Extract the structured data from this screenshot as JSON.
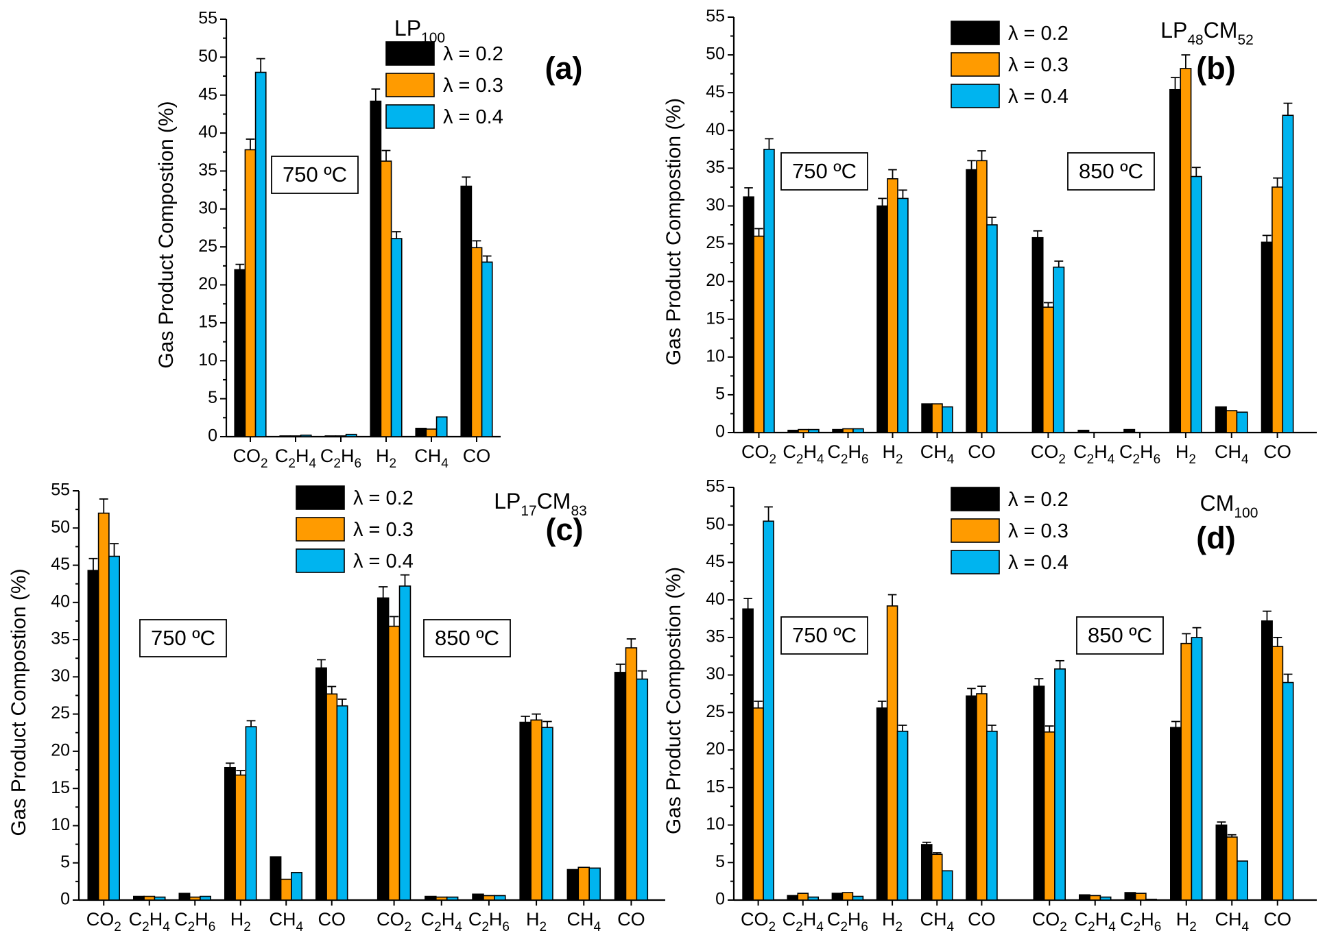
{
  "chart_data": [
    {
      "type": "bar",
      "panel": "(a)",
      "title": {
        "base": "LP",
        "sub": "100"
      },
      "ylabel": "Gas Product Compostion (%)",
      "ylim": [
        0,
        55
      ],
      "yticks": [
        0,
        5,
        10,
        15,
        20,
        25,
        30,
        35,
        40,
        45,
        50,
        55
      ],
      "legend_location": "top-right",
      "legend": [
        "λ = 0.2",
        "λ = 0.3",
        "λ = 0.4"
      ],
      "colors": [
        "#000000",
        "#ff9b00",
        "#00b4ef"
      ],
      "groups": [
        {
          "temperature": "750 ºC",
          "categories": [
            {
              "base": "CO",
              "sub": "2",
              "suffix": ""
            },
            {
              "base": "C",
              "sub": "2",
              "suffix": "H4"
            },
            {
              "base": "C",
              "sub": "2",
              "suffix": "H6"
            },
            {
              "base": "H",
              "sub": "2",
              "suffix": ""
            },
            {
              "base": "CH",
              "sub": "4",
              "suffix": ""
            },
            {
              "base": "CO",
              "sub": "",
              "suffix": ""
            }
          ],
          "series": [
            {
              "name": "λ = 0.2",
              "values": [
                22.0,
                0.1,
                0.1,
                44.2,
                1.1,
                33.0
              ],
              "errors": [
                0.7,
                0,
                0,
                1.6,
                0,
                1.2
              ]
            },
            {
              "name": "λ = 0.3",
              "values": [
                37.8,
                0.1,
                0.1,
                36.3,
                1.0,
                24.9
              ],
              "errors": [
                1.4,
                0,
                0,
                1.4,
                0,
                0.9
              ]
            },
            {
              "name": "λ = 0.4",
              "values": [
                48.0,
                0.2,
                0.3,
                26.1,
                2.6,
                23.0
              ],
              "errors": [
                1.8,
                0,
                0,
                0.9,
                0,
                0.8
              ]
            }
          ]
        }
      ]
    },
    {
      "type": "bar",
      "panel": "(b)",
      "title": {
        "base": "LP",
        "sub": "48",
        "mid": "CM",
        "sub2": "52"
      },
      "ylabel": "Gas Product Compostion (%)",
      "ylim": [
        0,
        55
      ],
      "yticks": [
        0,
        5,
        10,
        15,
        20,
        25,
        30,
        35,
        40,
        45,
        50,
        55
      ],
      "legend_location": "top-center",
      "legend": [
        "λ = 0.2",
        "λ = 0.3",
        "λ = 0.4"
      ],
      "colors": [
        "#000000",
        "#ff9b00",
        "#00b4ef"
      ],
      "groups": [
        {
          "temperature": "750 ºC",
          "categories": [
            {
              "base": "CO",
              "sub": "2",
              "suffix": ""
            },
            {
              "base": "C",
              "sub": "2",
              "suffix": "H4"
            },
            {
              "base": "C",
              "sub": "2",
              "suffix": "H6"
            },
            {
              "base": "H",
              "sub": "2",
              "suffix": ""
            },
            {
              "base": "CH",
              "sub": "4",
              "suffix": ""
            },
            {
              "base": "CO",
              "sub": "",
              "suffix": ""
            }
          ],
          "series": [
            {
              "name": "λ = 0.2",
              "values": [
                31.2,
                0.3,
                0.4,
                30.0,
                3.8,
                34.8
              ],
              "errors": [
                1.2,
                0,
                0,
                1.0,
                0,
                1.2
              ]
            },
            {
              "name": "λ = 0.3",
              "values": [
                26.0,
                0.4,
                0.5,
                33.6,
                3.8,
                36.0
              ],
              "errors": [
                1.0,
                0,
                0,
                1.2,
                0,
                1.3
              ]
            },
            {
              "name": "λ = 0.4",
              "values": [
                37.5,
                0.4,
                0.5,
                31.0,
                3.4,
                27.5
              ],
              "errors": [
                1.4,
                0,
                0,
                1.1,
                0,
                1.0
              ]
            }
          ]
        },
        {
          "temperature": "850 ºC",
          "categories": [
            {
              "base": "CO",
              "sub": "2",
              "suffix": ""
            },
            {
              "base": "C",
              "sub": "2",
              "suffix": "H4"
            },
            {
              "base": "C",
              "sub": "2",
              "suffix": "H6"
            },
            {
              "base": "H",
              "sub": "2",
              "suffix": ""
            },
            {
              "base": "CH",
              "sub": "4",
              "suffix": ""
            },
            {
              "base": "CO",
              "sub": "",
              "suffix": ""
            }
          ],
          "series": [
            {
              "name": "λ = 0.2",
              "values": [
                25.8,
                0.3,
                0.4,
                45.4,
                3.4,
                25.2
              ],
              "errors": [
                0.9,
                0,
                0,
                1.6,
                0,
                0.9
              ]
            },
            {
              "name": "λ = 0.3",
              "values": [
                16.6,
                0.0,
                0.0,
                48.2,
                2.9,
                32.5
              ],
              "errors": [
                0.6,
                0,
                0,
                1.8,
                0,
                1.2
              ]
            },
            {
              "name": "λ = 0.4",
              "values": [
                21.9,
                0.0,
                0.0,
                33.9,
                2.7,
                42.0
              ],
              "errors": [
                0.8,
                0,
                0,
                1.2,
                0,
                1.6
              ]
            }
          ]
        }
      ]
    },
    {
      "type": "bar",
      "panel": "(c)",
      "title": {
        "base": "LP",
        "sub": "17",
        "mid": "CM",
        "sub2": "83"
      },
      "ylabel": "Gas Product Compostion (%)",
      "ylim": [
        0,
        55
      ],
      "yticks": [
        0,
        5,
        10,
        15,
        20,
        25,
        30,
        35,
        40,
        45,
        50,
        55
      ],
      "legend_location": "top-center",
      "legend": [
        "λ = 0.2",
        "λ = 0.3",
        "λ = 0.4"
      ],
      "colors": [
        "#000000",
        "#ff9b00",
        "#00b4ef"
      ],
      "groups": [
        {
          "temperature": "750 ºC",
          "categories": [
            {
              "base": "CO",
              "sub": "2",
              "suffix": ""
            },
            {
              "base": "C",
              "sub": "2",
              "suffix": "H4"
            },
            {
              "base": "C",
              "sub": "2",
              "suffix": "H6"
            },
            {
              "base": "H",
              "sub": "2",
              "suffix": ""
            },
            {
              "base": "CH",
              "sub": "4",
              "suffix": ""
            },
            {
              "base": "CO",
              "sub": "",
              "suffix": ""
            }
          ],
          "series": [
            {
              "name": "λ = 0.2",
              "values": [
                44.3,
                0.5,
                0.9,
                17.8,
                5.8,
                31.2
              ],
              "errors": [
                1.6,
                0,
                0,
                0.6,
                0,
                1.1
              ]
            },
            {
              "name": "λ = 0.3",
              "values": [
                52.0,
                0.5,
                0.4,
                16.8,
                2.8,
                27.7
              ],
              "errors": [
                1.9,
                0,
                0,
                0.6,
                0,
                1.0
              ]
            },
            {
              "name": "λ = 0.4",
              "values": [
                46.2,
                0.4,
                0.5,
                23.3,
                3.7,
                26.1
              ],
              "errors": [
                1.7,
                0,
                0,
                0.8,
                0,
                0.9
              ]
            }
          ]
        },
        {
          "temperature": "850 ºC",
          "categories": [
            {
              "base": "CO",
              "sub": "2",
              "suffix": ""
            },
            {
              "base": "C",
              "sub": "2",
              "suffix": "H4"
            },
            {
              "base": "C",
              "sub": "2",
              "suffix": "H6"
            },
            {
              "base": "H",
              "sub": "2",
              "suffix": ""
            },
            {
              "base": "CH",
              "sub": "4",
              "suffix": ""
            },
            {
              "base": "CO",
              "sub": "",
              "suffix": ""
            }
          ],
          "series": [
            {
              "name": "λ = 0.2",
              "values": [
                40.6,
                0.5,
                0.8,
                23.9,
                4.1,
                30.6
              ],
              "errors": [
                1.5,
                0,
                0,
                0.8,
                0,
                1.1
              ]
            },
            {
              "name": "λ = 0.3",
              "values": [
                36.8,
                0.4,
                0.6,
                24.2,
                4.4,
                33.9
              ],
              "errors": [
                1.3,
                0,
                0,
                0.8,
                0,
                1.2
              ]
            },
            {
              "name": "λ = 0.4",
              "values": [
                42.2,
                0.4,
                0.6,
                23.2,
                4.3,
                29.7
              ],
              "errors": [
                1.5,
                0,
                0,
                0.8,
                0,
                1.1
              ]
            }
          ]
        }
      ]
    },
    {
      "type": "bar",
      "panel": "(d)",
      "title": {
        "base": "CM",
        "sub": "100"
      },
      "ylabel": "Gas Product Compostion (%)",
      "ylim": [
        0,
        55
      ],
      "yticks": [
        0,
        5,
        10,
        15,
        20,
        25,
        30,
        35,
        40,
        45,
        50,
        55
      ],
      "legend_location": "top-center",
      "legend": [
        "λ = 0.2",
        "λ = 0.3",
        "λ = 0.4"
      ],
      "colors": [
        "#000000",
        "#ff9b00",
        "#00b4ef"
      ],
      "groups": [
        {
          "temperature": "750 ºC",
          "categories": [
            {
              "base": "CO",
              "sub": "2",
              "suffix": ""
            },
            {
              "base": "C",
              "sub": "2",
              "suffix": "H4"
            },
            {
              "base": "C",
              "sub": "2",
              "suffix": "H6"
            },
            {
              "base": "H",
              "sub": "2",
              "suffix": ""
            },
            {
              "base": "CH",
              "sub": "4",
              "suffix": ""
            },
            {
              "base": "CO",
              "sub": "",
              "suffix": ""
            }
          ],
          "series": [
            {
              "name": "λ = 0.2",
              "values": [
                38.8,
                0.6,
                0.9,
                25.6,
                7.4,
                27.2
              ],
              "errors": [
                1.4,
                0,
                0,
                0.9,
                0.3,
                1.0
              ]
            },
            {
              "name": "λ = 0.3",
              "values": [
                25.6,
                0.9,
                1.0,
                39.2,
                6.1,
                27.5
              ],
              "errors": [
                0.9,
                0,
                0,
                1.5,
                0.2,
                1.0
              ]
            },
            {
              "name": "λ = 0.4",
              "values": [
                50.5,
                0.4,
                0.5,
                22.5,
                3.9,
                22.5
              ],
              "errors": [
                1.9,
                0,
                0,
                0.8,
                0,
                0.8
              ]
            }
          ]
        },
        {
          "temperature": "850 ºC",
          "categories": [
            {
              "base": "CO",
              "sub": "2",
              "suffix": ""
            },
            {
              "base": "C",
              "sub": "2",
              "suffix": "H4"
            },
            {
              "base": "C",
              "sub": "2",
              "suffix": "H6"
            },
            {
              "base": "H",
              "sub": "2",
              "suffix": ""
            },
            {
              "base": "CH",
              "sub": "4",
              "suffix": ""
            },
            {
              "base": "CO",
              "sub": "",
              "suffix": ""
            }
          ],
          "series": [
            {
              "name": "λ = 0.2",
              "values": [
                28.5,
                0.7,
                1.0,
                23.0,
                10.0,
                37.2
              ],
              "errors": [
                1.0,
                0,
                0,
                0.8,
                0.4,
                1.3
              ]
            },
            {
              "name": "λ = 0.3",
              "values": [
                22.4,
                0.6,
                0.9,
                34.2,
                8.4,
                33.8
              ],
              "errors": [
                0.8,
                0,
                0,
                1.3,
                0.3,
                1.2
              ]
            },
            {
              "name": "λ = 0.4",
              "values": [
                30.8,
                0.4,
                0.1,
                35.0,
                5.2,
                29.0
              ],
              "errors": [
                1.1,
                0,
                0,
                1.3,
                0,
                1.1
              ]
            }
          ]
        }
      ]
    }
  ]
}
